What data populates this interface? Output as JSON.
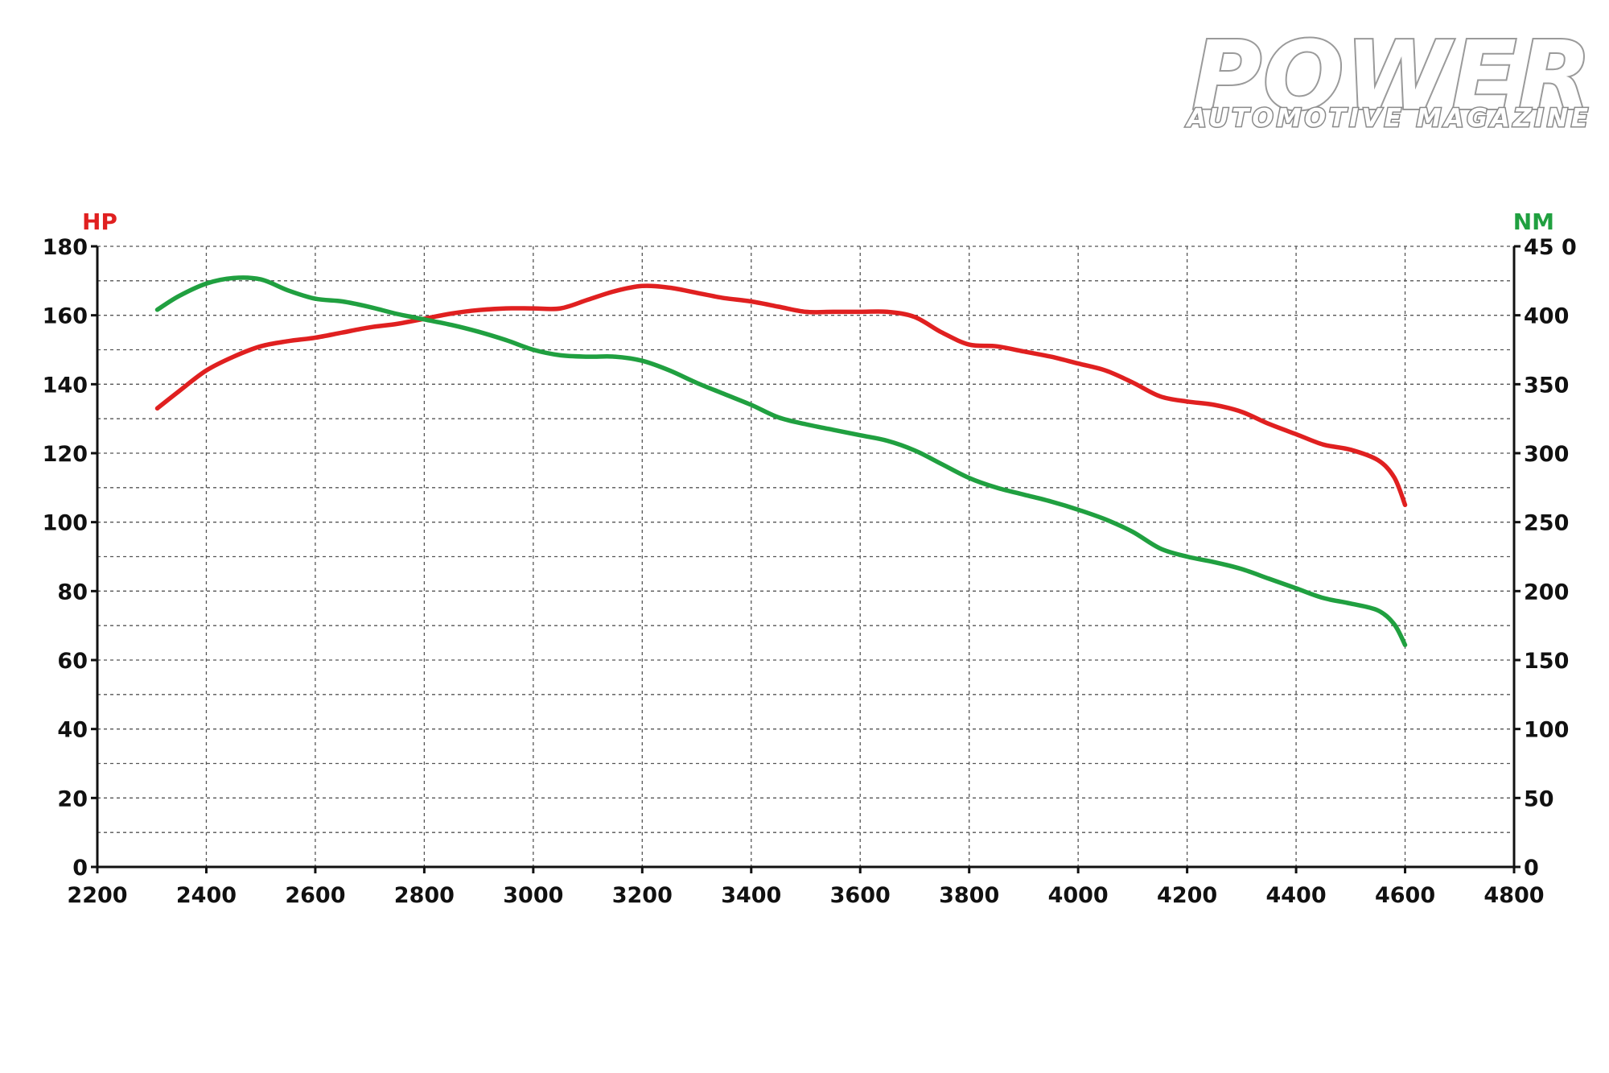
{
  "logo": {
    "main": "POWER",
    "sub": "AUTOMOTIVE MAGAZINE"
  },
  "chart_data": {
    "type": "line",
    "x_ticks": [
      "2200",
      "2400",
      "2600",
      "2800",
      "3000",
      "3200",
      "3400",
      "3600",
      "3800",
      "4000",
      "4200",
      "4400",
      "4600",
      "4800"
    ],
    "xlim": [
      2200,
      4800
    ],
    "y_left": {
      "label": "HP",
      "color": "#e02020",
      "ticks": [
        "0",
        "20",
        "40",
        "60",
        "80",
        "100",
        "120",
        "140",
        "160",
        "180"
      ],
      "ylim": [
        0,
        180
      ]
    },
    "y_right": {
      "label": "NM",
      "color": "#20a040",
      "ticks": [
        "0",
        "50",
        "100",
        "150",
        "200",
        "250",
        "300",
        "350",
        "400",
        "45 0"
      ],
      "ylim": [
        0,
        450
      ]
    },
    "grid": true,
    "series": [
      {
        "name": "HP",
        "axis": "left",
        "color": "#e02020",
        "x": [
          2310,
          2350,
          2400,
          2450,
          2500,
          2550,
          2600,
          2650,
          2700,
          2750,
          2800,
          2850,
          2900,
          2950,
          3000,
          3050,
          3100,
          3150,
          3200,
          3250,
          3300,
          3350,
          3400,
          3450,
          3500,
          3550,
          3600,
          3650,
          3700,
          3750,
          3800,
          3850,
          3900,
          3950,
          4000,
          4050,
          4100,
          4150,
          4200,
          4250,
          4300,
          4350,
          4400,
          4450,
          4500,
          4550,
          4580,
          4600
        ],
        "values": [
          133,
          138,
          144,
          148,
          151,
          152.5,
          153.5,
          155,
          156.5,
          157.5,
          159,
          160.5,
          161.5,
          162,
          162,
          162,
          164.5,
          167,
          168.5,
          168,
          166.5,
          165,
          164,
          162.5,
          161,
          161,
          161,
          161,
          159.5,
          155,
          151.5,
          151,
          149.5,
          148,
          146,
          144,
          140.5,
          136.5,
          135,
          134,
          132,
          128.5,
          125.5,
          122.5,
          121,
          118,
          113,
          105
        ]
      },
      {
        "name": "NM",
        "axis": "right",
        "color": "#20a040",
        "x": [
          2310,
          2350,
          2400,
          2450,
          2500,
          2550,
          2600,
          2650,
          2700,
          2750,
          2800,
          2850,
          2900,
          2950,
          3000,
          3050,
          3100,
          3150,
          3200,
          3250,
          3300,
          3350,
          3400,
          3450,
          3500,
          3550,
          3600,
          3650,
          3700,
          3750,
          3800,
          3850,
          3900,
          3950,
          4000,
          4050,
          4100,
          4150,
          4200,
          4250,
          4300,
          4350,
          4400,
          4450,
          4500,
          4550,
          4580,
          4600
        ],
        "values": [
          404,
          414,
          423,
          427,
          426,
          418,
          412,
          410,
          406,
          401,
          397,
          393,
          388,
          382,
          375,
          371,
          370,
          370,
          367,
          360,
          351,
          343,
          335,
          326,
          321,
          317,
          313,
          309,
          302,
          292,
          282,
          275,
          270,
          265,
          259,
          252,
          243,
          231,
          225,
          221,
          216,
          209,
          202,
          195,
          191,
          186,
          176,
          161
        ]
      }
    ]
  }
}
